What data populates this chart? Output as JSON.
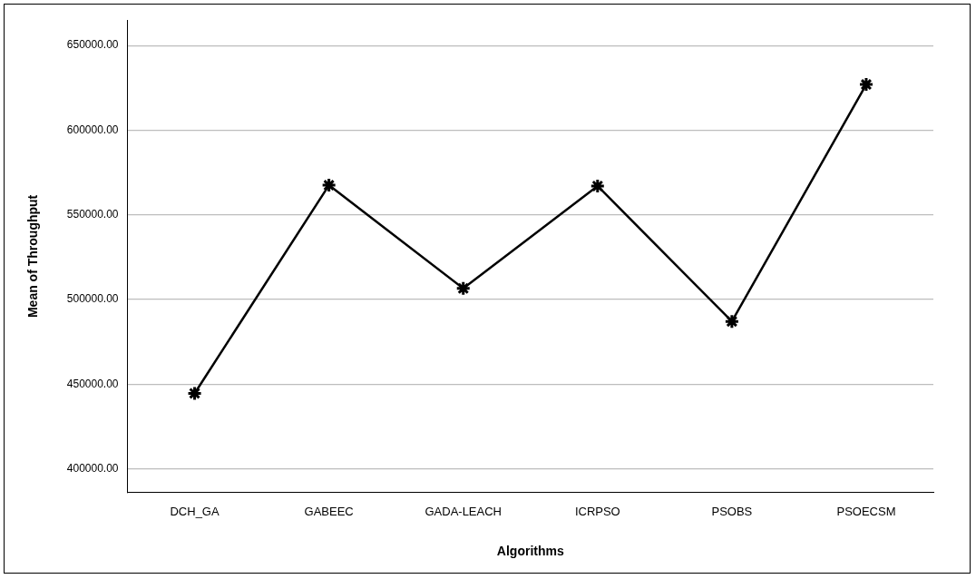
{
  "chart_data": {
    "type": "line",
    "xlabel": "Algorithms",
    "ylabel": "Mean of Throughput",
    "categories": [
      "DCH_GA",
      "GABEEC",
      "GADA-LEACH",
      "ICRPSO",
      "PSOBS",
      "PSOECSM"
    ],
    "series": [
      {
        "color": "#000000",
        "values": [
          444500,
          567500,
          506500,
          567000,
          487000,
          627000
        ]
      }
    ],
    "ylim": [
      386000,
      665000
    ],
    "yticks": [
      {
        "value": 400000,
        "label": "400000.00"
      },
      {
        "value": 450000,
        "label": "450000.00"
      },
      {
        "value": 500000,
        "label": "500000.00"
      },
      {
        "value": 550000,
        "label": "550000.00"
      },
      {
        "value": 600000,
        "label": "600000.00"
      },
      {
        "value": 650000,
        "label": "650000.00"
      }
    ],
    "grid": "y",
    "legend": false,
    "marker": "cross",
    "line_style": "solid"
  }
}
